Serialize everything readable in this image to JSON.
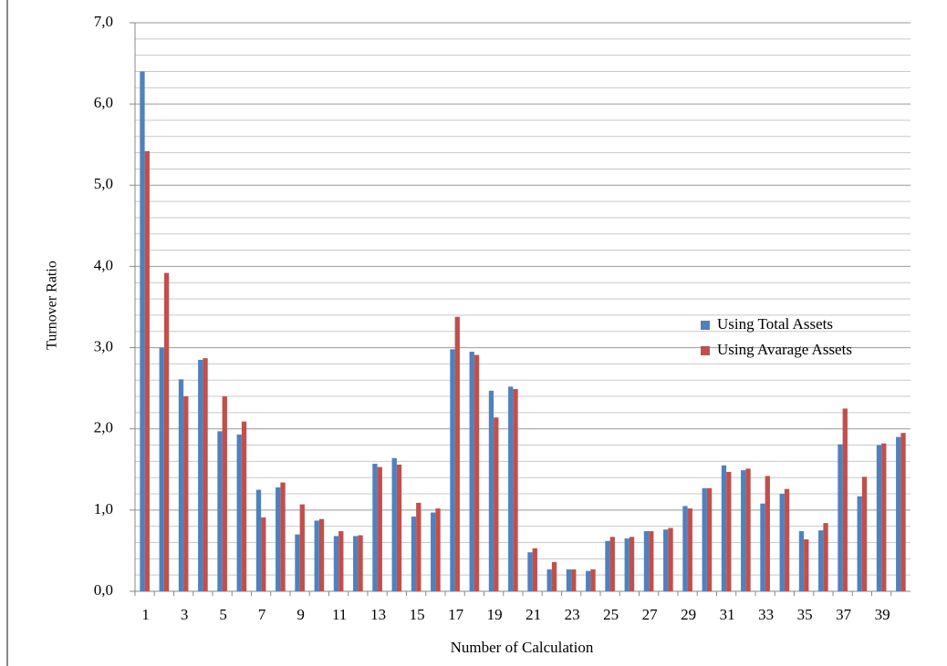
{
  "chart_data": {
    "type": "bar",
    "y_label": "Turnover Ratio",
    "x_label": "Number of Calculation",
    "categories": [
      "1",
      null,
      "3",
      null,
      "5",
      null,
      "7",
      null,
      "9",
      null,
      "11",
      null,
      "13",
      null,
      "15",
      null,
      "17",
      null,
      "19",
      null,
      "21",
      null,
      "23",
      null,
      "25",
      null,
      "27",
      null,
      "29",
      null,
      "31",
      null,
      "33",
      null,
      "35",
      null,
      "37",
      null,
      "39",
      null
    ],
    "series": [
      {
        "name": "Using Total Assets",
        "color": "#4f81bd",
        "values": [
          6.4,
          3.0,
          2.61,
          2.85,
          1.97,
          1.93,
          1.25,
          1.28,
          0.7,
          0.87,
          0.68,
          0.68,
          1.57,
          1.64,
          0.92,
          0.97,
          2.98,
          2.95,
          2.47,
          2.52,
          0.48,
          0.27,
          0.27,
          0.25,
          0.62,
          0.65,
          0.74,
          0.76,
          1.05,
          1.27,
          1.55,
          1.49,
          1.08,
          1.2,
          0.74,
          0.75,
          1.81,
          1.17,
          1.8,
          1.9
        ]
      },
      {
        "name": "Using Avarage Assets",
        "color": "#c0504d",
        "values": [
          5.42,
          3.92,
          2.4,
          2.87,
          2.4,
          2.09,
          0.91,
          1.34,
          1.07,
          0.89,
          0.74,
          0.69,
          1.53,
          1.56,
          1.09,
          1.02,
          3.38,
          2.91,
          2.14,
          2.49,
          0.53,
          0.36,
          0.27,
          0.27,
          0.67,
          0.67,
          0.74,
          0.78,
          1.02,
          1.27,
          1.47,
          1.51,
          1.42,
          1.26,
          0.64,
          0.84,
          2.25,
          1.41,
          1.82,
          1.95
        ]
      }
    ],
    "ylim": [
      0,
      7
    ],
    "yticks": [
      {
        "value": 0,
        "label": "0,0"
      },
      {
        "value": 1,
        "label": "1,0"
      },
      {
        "value": 2,
        "label": "2,0"
      },
      {
        "value": 3,
        "label": "3,0"
      },
      {
        "value": 4,
        "label": "4,0"
      },
      {
        "value": 5,
        "label": "5,0"
      },
      {
        "value": 6,
        "label": "6,0"
      },
      {
        "value": 7,
        "label": "7,0"
      }
    ],
    "minor_yticks": [
      0.2,
      0.4,
      0.6,
      0.8,
      1.2,
      1.4,
      1.6,
      1.8,
      2.2,
      2.4,
      2.6,
      2.8,
      3.2,
      3.4,
      3.6,
      3.8,
      4.2,
      4.4,
      4.6,
      4.8,
      5.2,
      5.4,
      5.6,
      5.8,
      6.2,
      6.4,
      6.6,
      6.8
    ],
    "grid": true,
    "legend": "right"
  }
}
